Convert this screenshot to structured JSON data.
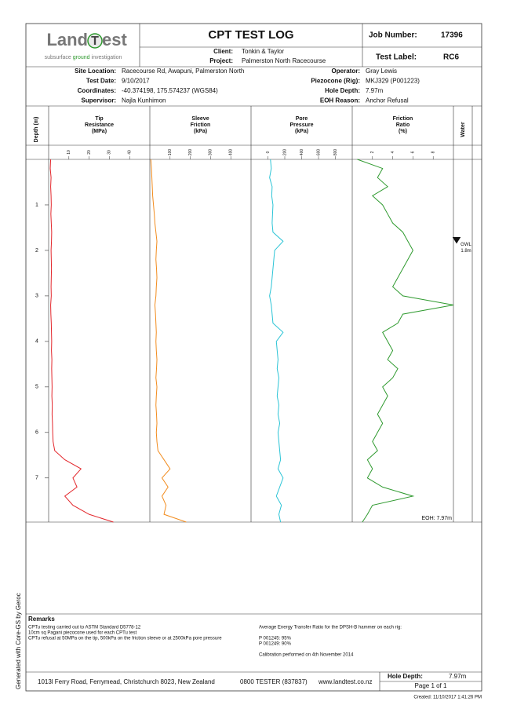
{
  "header": {
    "title": "CPT TEST LOG",
    "job_number_label": "Job Number:",
    "job_number": "17396",
    "test_label_label": "Test Label:",
    "test_label": "RC6",
    "client_label": "Client:",
    "client": "Tonkin & Taylor",
    "project_label": "Project:",
    "project": "Palmerston North Racecourse"
  },
  "logo": {
    "word_1": "Land",
    "mark": "T",
    "word_2": "est",
    "tagline_1": "subsurface",
    "tagline_2": "ground",
    "tagline_3": "investigation"
  },
  "info": {
    "left": [
      [
        "Site Location:",
        "Racecourse Rd, Awapuni, Palmerston North"
      ],
      [
        "Test Date:",
        "9/10/2017"
      ],
      [
        "Coordinates:",
        "-40.374198, 175.574237 (WGS84)"
      ],
      [
        "Supervisor:",
        "Najla Kunhimon"
      ]
    ],
    "right": [
      [
        "Operator:",
        "Gray Lewis"
      ],
      [
        "Piezocone (Rig):",
        "MKJ329 (P001223)"
      ],
      [
        "Hole Depth:",
        "7.97m"
      ],
      [
        "EOH Reason:",
        "Anchor Refusal"
      ]
    ]
  },
  "depth_axis": {
    "label": "Depth (m)",
    "ylim": [
      0,
      7.97
    ],
    "yticks": [
      1,
      2,
      3,
      4,
      5,
      6,
      7
    ]
  },
  "chart_data": [
    {
      "type": "line",
      "title": [
        "Tip",
        "Resistance",
        "(MPa)"
      ],
      "xlim": [
        0,
        50
      ],
      "xticks": [
        10,
        20,
        30,
        40
      ],
      "color": "#e3262b",
      "y": [
        0,
        0.2,
        0.4,
        0.6,
        0.8,
        1,
        1.2,
        1.4,
        1.6,
        1.8,
        2,
        2.2,
        2.4,
        2.6,
        2.8,
        3,
        3.2,
        3.4,
        3.6,
        3.8,
        4,
        4.2,
        4.4,
        4.6,
        4.8,
        5,
        5.2,
        5.4,
        5.6,
        5.8,
        6,
        6.2,
        6.4,
        6.6,
        6.8,
        7,
        7.2,
        7.4,
        7.6,
        7.8,
        7.97
      ],
      "values": [
        1.0,
        0.8,
        1.2,
        1.0,
        1.2,
        1.3,
        1.1,
        1.3,
        1.5,
        1.4,
        1.2,
        1.3,
        1.4,
        1.3,
        1.2,
        1.3,
        1.0,
        1.1,
        1.3,
        1.4,
        1.5,
        1.4,
        1.6,
        1.5,
        1.6,
        1.7,
        1.6,
        1.8,
        1.7,
        1.9,
        2.0,
        2.2,
        3.0,
        8.0,
        16.0,
        12.0,
        14.0,
        8.0,
        12.0,
        20.0,
        32.0
      ]
    },
    {
      "type": "line",
      "title": [
        "Sleeve",
        "Friction",
        "(kPa)"
      ],
      "xlim": [
        0,
        500
      ],
      "xticks": [
        100,
        200,
        300,
        400
      ],
      "color": "#f28c1e",
      "y": [
        0,
        0.2,
        0.4,
        0.6,
        0.8,
        1,
        1.2,
        1.4,
        1.6,
        1.8,
        2,
        2.2,
        2.4,
        2.6,
        2.8,
        3,
        3.2,
        3.4,
        3.6,
        3.8,
        4,
        4.2,
        4.4,
        4.6,
        4.8,
        5,
        5.2,
        5.4,
        5.6,
        5.8,
        6,
        6.2,
        6.4,
        6.6,
        6.8,
        7,
        7.2,
        7.4,
        7.6,
        7.8,
        7.97
      ],
      "values": [
        5,
        8,
        10,
        12,
        14,
        18,
        22,
        25,
        30,
        35,
        32,
        30,
        33,
        35,
        32,
        30,
        25,
        28,
        30,
        32,
        30,
        32,
        35,
        33,
        30,
        35,
        32,
        30,
        33,
        35,
        32,
        35,
        40,
        70,
        100,
        60,
        90,
        60,
        80,
        70,
        180
      ]
    },
    {
      "type": "line",
      "title": [
        "Pore",
        "Pressure",
        "(kPa)"
      ],
      "xlim": [
        -200,
        1000
      ],
      "xticks": [
        0,
        200,
        400,
        600,
        800
      ],
      "color": "#2bc4d6",
      "y": [
        0,
        0.2,
        0.4,
        0.6,
        0.8,
        1,
        1.2,
        1.4,
        1.6,
        1.8,
        2,
        2.2,
        2.4,
        2.6,
        2.8,
        3,
        3.2,
        3.4,
        3.6,
        3.8,
        4,
        4.2,
        4.4,
        4.6,
        4.8,
        5,
        5.2,
        5.4,
        5.6,
        5.8,
        6,
        6.2,
        6.4,
        6.6,
        6.8,
        7,
        7.2,
        7.4,
        7.6,
        7.8,
        7.97
      ],
      "values": [
        30,
        40,
        20,
        50,
        45,
        60,
        55,
        50,
        60,
        180,
        80,
        70,
        60,
        50,
        40,
        20,
        40,
        50,
        60,
        180,
        100,
        110,
        120,
        110,
        130,
        120,
        110,
        130,
        120,
        140,
        120,
        130,
        140,
        150,
        120,
        180,
        140,
        100,
        160,
        130,
        150
      ]
    },
    {
      "type": "line",
      "title": [
        "Friction",
        "Ratio",
        "(%)"
      ],
      "xlim": [
        0,
        10
      ],
      "xticks": [
        2,
        4,
        6,
        8
      ],
      "color": "#2f9a2f",
      "y": [
        0,
        0.2,
        0.4,
        0.6,
        0.8,
        1,
        1.2,
        1.4,
        1.6,
        1.8,
        2,
        2.2,
        2.4,
        2.6,
        2.8,
        3,
        3.2,
        3.4,
        3.6,
        3.8,
        4,
        4.2,
        4.4,
        4.6,
        4.8,
        5,
        5.2,
        5.4,
        5.6,
        5.8,
        6,
        6.2,
        6.4,
        6.6,
        6.8,
        7,
        7.2,
        7.4,
        7.6,
        7.8,
        7.97
      ],
      "values": [
        0.5,
        3.0,
        2.5,
        3.5,
        2.0,
        3.0,
        3.5,
        4.0,
        5.0,
        5.5,
        6.0,
        5.5,
        5.0,
        4.5,
        4.0,
        5.0,
        10.0,
        5.0,
        4.5,
        3.0,
        3.5,
        4.0,
        3.5,
        4.5,
        4.0,
        3.0,
        3.5,
        3.0,
        2.5,
        3.0,
        2.5,
        2.0,
        2.5,
        1.5,
        2.0,
        1.5,
        3.0,
        6.0,
        2.0,
        1.5,
        1.0
      ]
    }
  ],
  "water": {
    "title": "Water",
    "gwl_label": "GWL",
    "gwl_depth": 1.8,
    "gwl_depth_label": "1.8m"
  },
  "eoh_label": "EOH: 7.97m",
  "remarks": {
    "title": "Remarks",
    "left": [
      "CPTu testing carried out to ASTM Standard D5778-12",
      "10cm sq Pagani piezocone used for each CPTu test",
      "CPTu refusal at 50MPa on the tip, 500kPa on the friction sleeve or at 2500kPa pore pressure"
    ],
    "right": [
      "Average Energy Transfer Ratio for the DPSH-B hammer on each rig:",
      "P 001245: 95%",
      "P 001249: 90%",
      "Calibration performed on 4th November 2014"
    ]
  },
  "footer": {
    "address": "1013l Ferry Road, Ferrymead, Christchurch 8023, New Zealand",
    "phone": "0800 TESTER (837837)",
    "website": "www.landtest.co.nz",
    "hole_depth_label": "Hole Depth:",
    "hole_depth": "7.97m",
    "page": "Page 1 of 1",
    "created": "Created: 11/10/2017 1:41:26 PM"
  },
  "side_text": "Generated with Core-GS by Geroc"
}
